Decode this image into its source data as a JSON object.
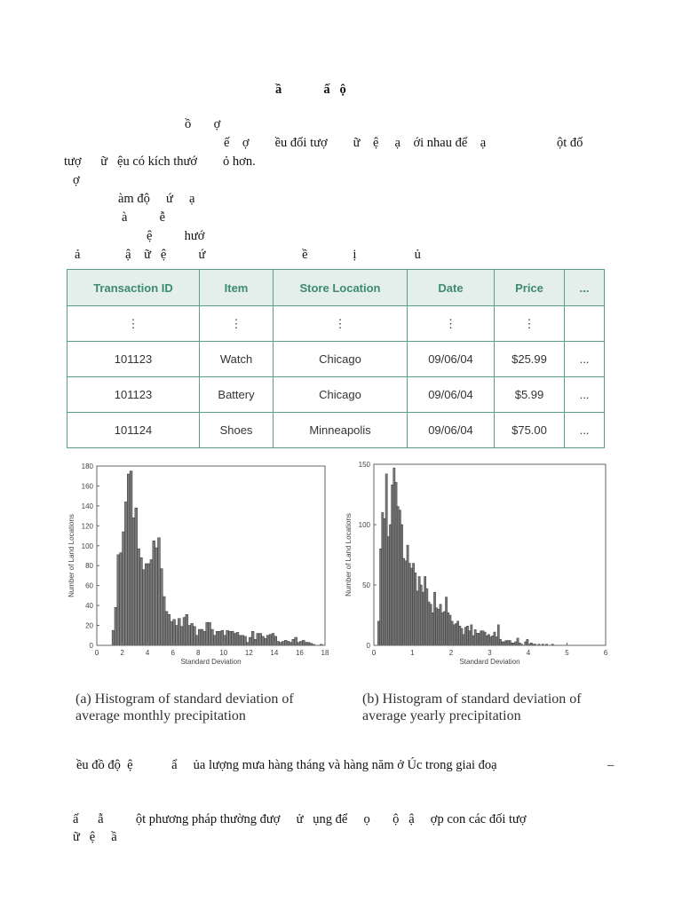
{
  "heading": "ầ             ấ   ộ",
  "lines": [
    "ồ       ợ",
    "ế    ợ        ều đối tượ        ữ    ệ     ạ    ới nhau để    ạ                      ột đố",
    "tượ      ữ   ệu có kích thướ        ỏ hơn.",
    "ợ",
    "àm độ     ứ     ạ",
    "à          ễ",
    "ệ          hướ",
    "ả              ậ    ữ   ệ          ứ                              ề              ị                  ủ"
  ],
  "table": {
    "headers": [
      "Transaction ID",
      "Item",
      "Store Location",
      "Date",
      "Price",
      "..."
    ],
    "rows": [
      [
        "⋮",
        "⋮",
        "⋮",
        "⋮",
        "⋮",
        ""
      ],
      [
        "101123",
        "Watch",
        "Chicago",
        "09/06/04",
        "$25.99",
        "..."
      ],
      [
        "101123",
        "Battery",
        "Chicago",
        "09/06/04",
        "$5.99",
        "..."
      ],
      [
        "101124",
        "Shoes",
        "Minneapolis",
        "09/06/04",
        "$75.00",
        "..."
      ]
    ]
  },
  "chart_data": [
    {
      "type": "bar",
      "title": "",
      "xlabel": "Standard Deviation",
      "ylabel": "Number of Land Locations",
      "xlim": [
        0,
        18
      ],
      "ylim": [
        0,
        180
      ],
      "xticks": [
        "0",
        "2",
        "4",
        "6",
        "8",
        "10",
        "12",
        "14",
        "16",
        "18"
      ],
      "yticks": [
        "0",
        "20",
        "40",
        "60",
        "80",
        "100",
        "120",
        "140",
        "160",
        "180"
      ],
      "bin_start": 1.2,
      "bin_width": 0.2,
      "values": [
        15,
        38,
        91,
        93,
        114,
        144,
        172,
        175,
        128,
        138,
        97,
        88,
        76,
        82,
        82,
        86,
        105,
        98,
        108,
        77,
        49,
        34,
        31,
        24,
        26,
        20,
        27,
        19,
        28,
        31,
        20,
        22,
        19,
        10,
        16,
        16,
        14,
        23,
        23,
        16,
        10,
        14,
        14,
        15,
        10,
        15,
        14,
        14,
        12,
        13,
        10,
        10,
        9,
        3,
        8,
        14,
        6,
        12,
        12,
        9,
        7,
        10,
        11,
        12,
        9,
        4,
        3,
        4,
        5,
        4,
        3,
        6,
        8,
        3,
        4,
        5,
        3,
        3,
        2,
        1,
        0,
        0,
        1
      ],
      "caption": [
        "(a) Histogram of standard deviation of",
        "average monthly precipitation"
      ]
    },
    {
      "type": "bar",
      "title": "",
      "xlabel": "Standard Deviation",
      "ylabel": "Number of Land Locations",
      "xlim": [
        0,
        6
      ],
      "ylim": [
        0,
        150
      ],
      "xticks": [
        "0",
        "1",
        "2",
        "3",
        "4",
        "5",
        "6"
      ],
      "yticks": [
        "0",
        "50",
        "100",
        "150"
      ],
      "bin_start": 0.1,
      "bin_width": 0.05,
      "values": [
        20,
        80,
        110,
        105,
        142,
        90,
        100,
        133,
        147,
        135,
        115,
        112,
        100,
        72,
        70,
        83,
        68,
        64,
        68,
        60,
        45,
        57,
        50,
        44,
        57,
        47,
        36,
        34,
        27,
        44,
        31,
        30,
        34,
        27,
        28,
        40,
        27,
        25,
        20,
        17,
        18,
        20,
        16,
        14,
        9,
        15,
        16,
        12,
        17,
        8,
        13,
        10,
        10,
        12,
        12,
        11,
        8,
        9,
        7,
        8,
        11,
        7,
        17,
        5,
        3,
        3,
        4,
        4,
        4,
        2,
        2,
        3,
        6,
        2,
        1,
        0,
        3,
        5,
        1,
        2,
        1,
        1,
        0,
        1,
        0,
        1,
        0,
        1,
        0,
        0,
        1
      ],
      "caption": [
        "(b) Histogram of standard deviation of",
        "average yearly precipitation"
      ]
    }
  ],
  "bottom": [
    "ều đồ độ  ệ            ẩ     ủa lượng mưa hàng tháng và hàng năm ở Úc trong giai đoạ",
    "–",
    "ấ      ẫ          ột phương pháp thường đượ     ử   ụng để     ọ       ộ   ậ     ợp con các đối tượ",
    "ữ   ệ     ầ"
  ]
}
